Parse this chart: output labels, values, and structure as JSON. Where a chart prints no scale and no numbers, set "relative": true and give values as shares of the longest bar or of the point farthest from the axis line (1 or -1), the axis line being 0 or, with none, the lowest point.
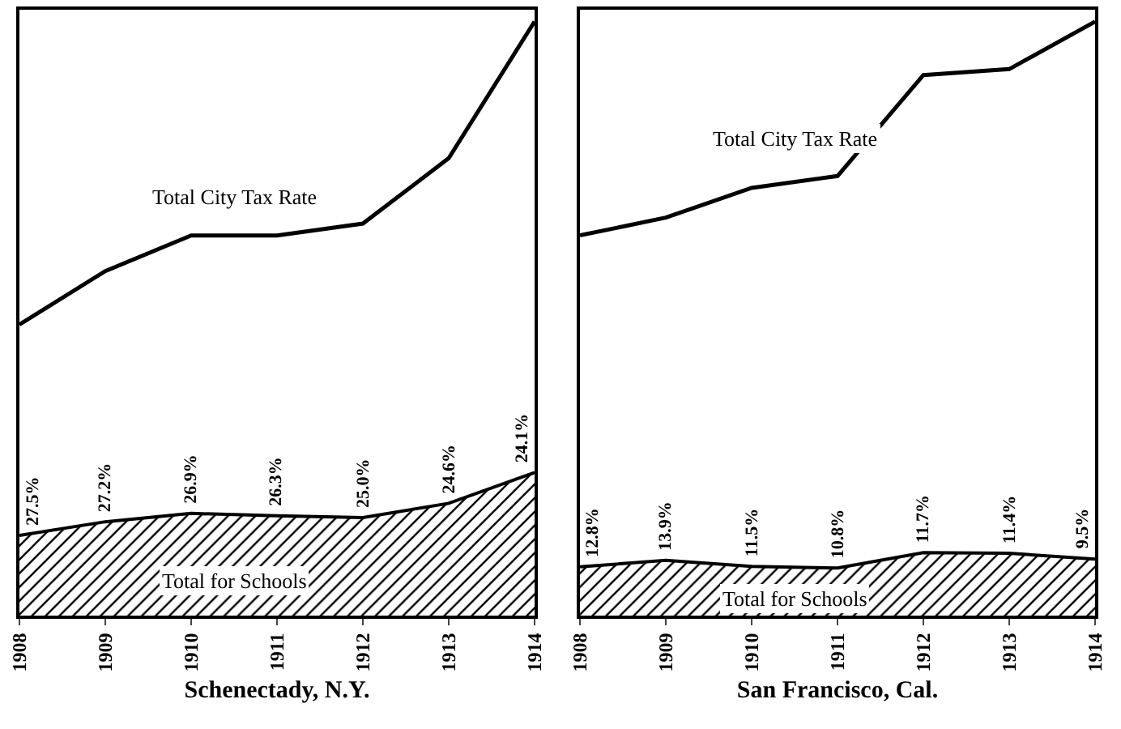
{
  "chart_data": [
    {
      "type": "line",
      "xlabel": "Schenectady, N.Y.",
      "categories": [
        "1908",
        "1909",
        "1910",
        "1911",
        "1912",
        "1913",
        "1914"
      ],
      "relative": true,
      "grid": false,
      "legend": false,
      "series": [
        {
          "name": "Total City Tax Rate",
          "color": "#000000",
          "values": [
            0.49,
            0.58,
            0.64,
            0.64,
            0.66,
            0.77,
            1.0
          ]
        },
        {
          "name": "Total for Schools",
          "type": "area",
          "color": "#000000",
          "values": [
            0.135,
            0.158,
            0.172,
            0.168,
            0.165,
            0.189,
            0.241
          ]
        }
      ],
      "annotations": [
        {
          "text": "27.5%",
          "x": "1908",
          "y": 0.135
        },
        {
          "text": "27.2%",
          "x": "1909",
          "y": 0.158
        },
        {
          "text": "26.9%",
          "x": "1910",
          "y": 0.172
        },
        {
          "text": "26.3%",
          "x": "1911",
          "y": 0.168
        },
        {
          "text": "25.0%",
          "x": "1912",
          "y": 0.165
        },
        {
          "text": "24.6%",
          "x": "1913",
          "y": 0.189
        },
        {
          "text": "24.1%",
          "x": "1914",
          "y": 0.241
        }
      ]
    },
    {
      "type": "line",
      "xlabel": "San Francisco, Cal.",
      "categories": [
        "1908",
        "1909",
        "1910",
        "1911",
        "1912",
        "1913",
        "1914"
      ],
      "relative": true,
      "grid": false,
      "legend": false,
      "series": [
        {
          "name": "Total City Tax Rate",
          "color": "#000000",
          "values": [
            0.64,
            0.67,
            0.72,
            0.74,
            0.91,
            0.92,
            1.0
          ]
        },
        {
          "name": "Total for Schools",
          "type": "area",
          "color": "#000000",
          "values": [
            0.082,
            0.093,
            0.083,
            0.08,
            0.106,
            0.105,
            0.095
          ]
        }
      ],
      "annotations": [
        {
          "text": "12.8%",
          "x": "1908",
          "y": 0.082
        },
        {
          "text": "13.9%",
          "x": "1909",
          "y": 0.093
        },
        {
          "text": "11.5%",
          "x": "1910",
          "y": 0.083
        },
        {
          "text": "10.8%",
          "x": "1911",
          "y": 0.08
        },
        {
          "text": "11.7%",
          "x": "1912",
          "y": 0.106
        },
        {
          "text": "11.4%",
          "x": "1913",
          "y": 0.105
        },
        {
          "text": "9.5%",
          "x": "1914",
          "y": 0.095
        }
      ]
    }
  ]
}
